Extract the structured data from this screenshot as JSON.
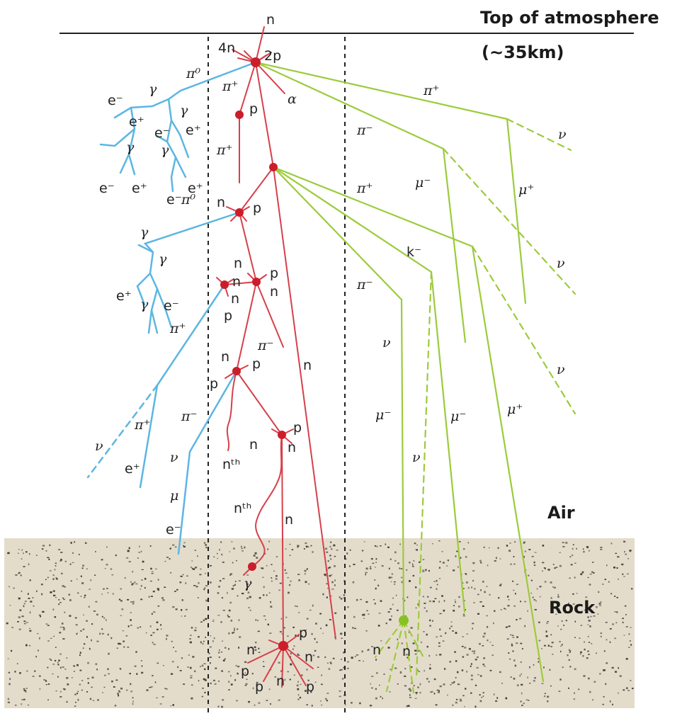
{
  "labels": {
    "top_of_atmosphere": "Top of atmosphere",
    "altitude": "(~35km)",
    "air": "Air",
    "rock": "Rock"
  },
  "colors": {
    "hadronic": "#d6404b",
    "node": "#cc1d2b",
    "electromagnetic": "#5cb6e2",
    "mesonic": "#9ccb3b",
    "rock": "#e4dccb",
    "rock_speckle": "#3c3a36"
  },
  "particles": {
    "n": "n",
    "p": "p",
    "4n": "4n",
    "2p": "2p",
    "e_minus": "e⁻",
    "e_plus": "e⁺",
    "gamma": "γ",
    "pi0": "π⁰",
    "pi_plus": "π⁺",
    "pi_minus": "π⁻",
    "alpha": "α",
    "nu": "ν",
    "mu": "μ",
    "mu_minus": "μ⁻",
    "mu_plus": "μ⁺",
    "k_minus": "k⁻",
    "n_th": "nᵗʰ"
  }
}
